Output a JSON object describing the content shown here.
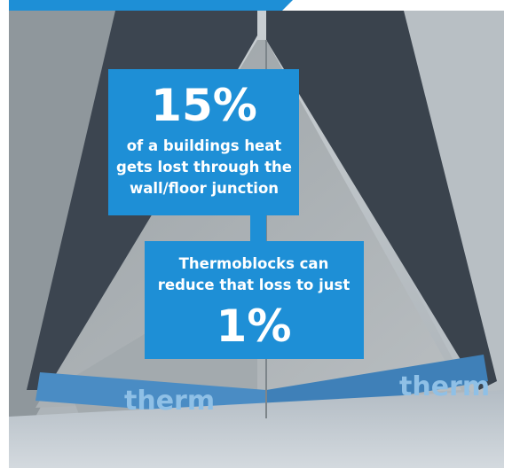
{
  "callout_top": {
    "headline": "15%",
    "lines": [
      "of a buildings heat",
      "gets lost through the",
      "wall/floor junction"
    ]
  },
  "callout_bottom": {
    "lines": [
      "Thermoblocks can",
      "reduce that loss to just"
    ],
    "headline": "1%"
  },
  "photo_labels": [
    "therm",
    "therm"
  ]
}
